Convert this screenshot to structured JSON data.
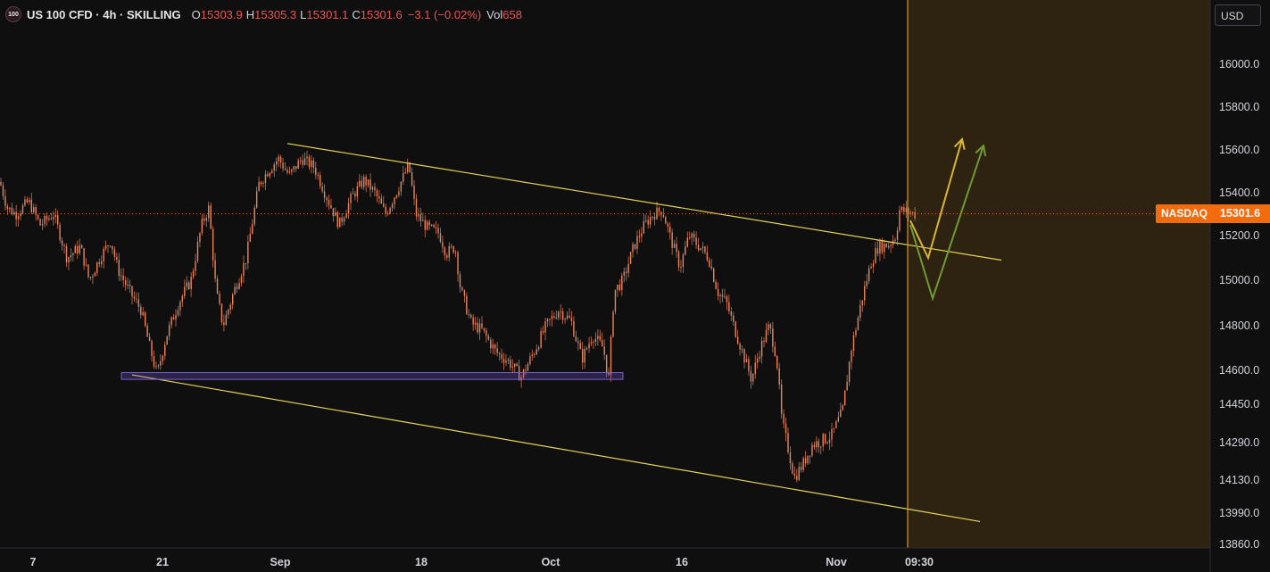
{
  "header": {
    "logo_text": "100",
    "title": "US 100 CFD · 4h · SKILLING",
    "ohlc": [
      {
        "key": "O",
        "value": "15303.9"
      },
      {
        "key": "H",
        "value": "15305.3"
      },
      {
        "key": "L",
        "value": "15301.1"
      },
      {
        "key": "C",
        "value": "15301.6"
      }
    ],
    "change": "−3.1 (−0.02%)",
    "vol_label": "Vol",
    "vol_value": "658"
  },
  "currency_button": "USD",
  "price_tag": {
    "name": "NASDAQ",
    "price": "15301.6"
  },
  "colors": {
    "background": "#0f0f0f",
    "candle": "#e8855c",
    "trendline": "#e6d45a",
    "projection_yellow": "#d9b634",
    "projection_green": "#6f9a34",
    "support_zone": "#7b5cd6",
    "highlight_zone": "#2e2210",
    "vertical_line": "#d9962a",
    "price_line": "#f26c0e"
  },
  "chart_data": {
    "type": "candlestick",
    "symbol": "US 100 CFD",
    "timeframe": "4h",
    "x_ticks": [
      "7",
      "21",
      "Sep",
      "18",
      "Oct",
      "16",
      "Nov",
      "09:30"
    ],
    "y_ticks": [
      "16000.0",
      "15800.0",
      "15600.0",
      "15400.0",
      "15200.0",
      "15000.0",
      "14800.0",
      "14600.0",
      "14450.0",
      "14290.0",
      "14130.0",
      "13990.0",
      "13860.0"
    ],
    "last_price": 15301.6,
    "path": [
      [
        0,
        15450
      ],
      [
        8,
        15330
      ],
      [
        18,
        15300
      ],
      [
        32,
        15360
      ],
      [
        45,
        15250
      ],
      [
        60,
        15300
      ],
      [
        75,
        15100
      ],
      [
        90,
        15150
      ],
      [
        100,
        15000
      ],
      [
        112,
        15100
      ],
      [
        124,
        15180
      ],
      [
        132,
        15050
      ],
      [
        145,
        14950
      ],
      [
        158,
        14870
      ],
      [
        168,
        14700
      ],
      [
        176,
        14580
      ],
      [
        186,
        14750
      ],
      [
        200,
        14900
      ],
      [
        214,
        15000
      ],
      [
        226,
        15250
      ],
      [
        234,
        15330
      ],
      [
        242,
        14950
      ],
      [
        250,
        14800
      ],
      [
        262,
        14950
      ],
      [
        276,
        15100
      ],
      [
        290,
        15440
      ],
      [
        300,
        15500
      ],
      [
        312,
        15560
      ],
      [
        324,
        15480
      ],
      [
        338,
        15560
      ],
      [
        352,
        15520
      ],
      [
        366,
        15380
      ],
      [
        380,
        15250
      ],
      [
        394,
        15380
      ],
      [
        408,
        15460
      ],
      [
        420,
        15400
      ],
      [
        432,
        15300
      ],
      [
        446,
        15420
      ],
      [
        458,
        15530
      ],
      [
        466,
        15300
      ],
      [
        478,
        15240
      ],
      [
        492,
        15210
      ],
      [
        500,
        15120
      ],
      [
        510,
        15150
      ],
      [
        516,
        14960
      ],
      [
        528,
        14810
      ],
      [
        540,
        14780
      ],
      [
        556,
        14680
      ],
      [
        570,
        14640
      ],
      [
        584,
        14570
      ],
      [
        598,
        14680
      ],
      [
        612,
        14800
      ],
      [
        626,
        14870
      ],
      [
        640,
        14820
      ],
      [
        652,
        14650
      ],
      [
        664,
        14760
      ],
      [
        676,
        14700
      ],
      [
        682,
        14560
      ],
      [
        688,
        14950
      ],
      [
        698,
        15000
      ],
      [
        710,
        15150
      ],
      [
        722,
        15250
      ],
      [
        732,
        15300
      ],
      [
        742,
        15320
      ],
      [
        752,
        15180
      ],
      [
        762,
        15060
      ],
      [
        772,
        15200
      ],
      [
        784,
        15150
      ],
      [
        794,
        15100
      ],
      [
        804,
        14950
      ],
      [
        814,
        14900
      ],
      [
        822,
        14800
      ],
      [
        832,
        14680
      ],
      [
        842,
        14560
      ],
      [
        852,
        14700
      ],
      [
        862,
        14800
      ],
      [
        870,
        14660
      ],
      [
        876,
        14380
      ],
      [
        884,
        14250
      ],
      [
        890,
        14140
      ],
      [
        900,
        14200
      ],
      [
        910,
        14280
      ],
      [
        922,
        14300
      ],
      [
        932,
        14320
      ],
      [
        944,
        14420
      ],
      [
        954,
        14700
      ],
      [
        966,
        14920
      ],
      [
        976,
        15080
      ],
      [
        984,
        15150
      ],
      [
        996,
        15160
      ],
      [
        1004,
        15200
      ],
      [
        1008,
        15320
      ],
      [
        1016,
        15310
      ],
      [
        1026,
        15300
      ]
    ],
    "annotations": [
      {
        "kind": "trendline",
        "from": [
          322,
          15630
        ],
        "to": [
          1122,
          15090
        ]
      },
      {
        "kind": "trendline",
        "from": [
          148,
          14580
        ],
        "to": [
          1098,
          13955
        ]
      },
      {
        "kind": "support_zone",
        "x1": 136,
        "x2": 698,
        "y1": 14590,
        "y2": 14560
      },
      {
        "kind": "highlight_zone",
        "x1": 1017,
        "x2": 1356
      },
      {
        "kind": "vertical_line",
        "x": 1017
      },
      {
        "kind": "projection",
        "color": "yellow",
        "points": [
          [
            1020,
            15270
          ],
          [
            1040,
            15100
          ],
          [
            1078,
            15650
          ]
        ]
      },
      {
        "kind": "projection",
        "color": "green",
        "points": [
          [
            1020,
            15250
          ],
          [
            1045,
            14920
          ],
          [
            1102,
            15620
          ]
        ]
      }
    ]
  }
}
